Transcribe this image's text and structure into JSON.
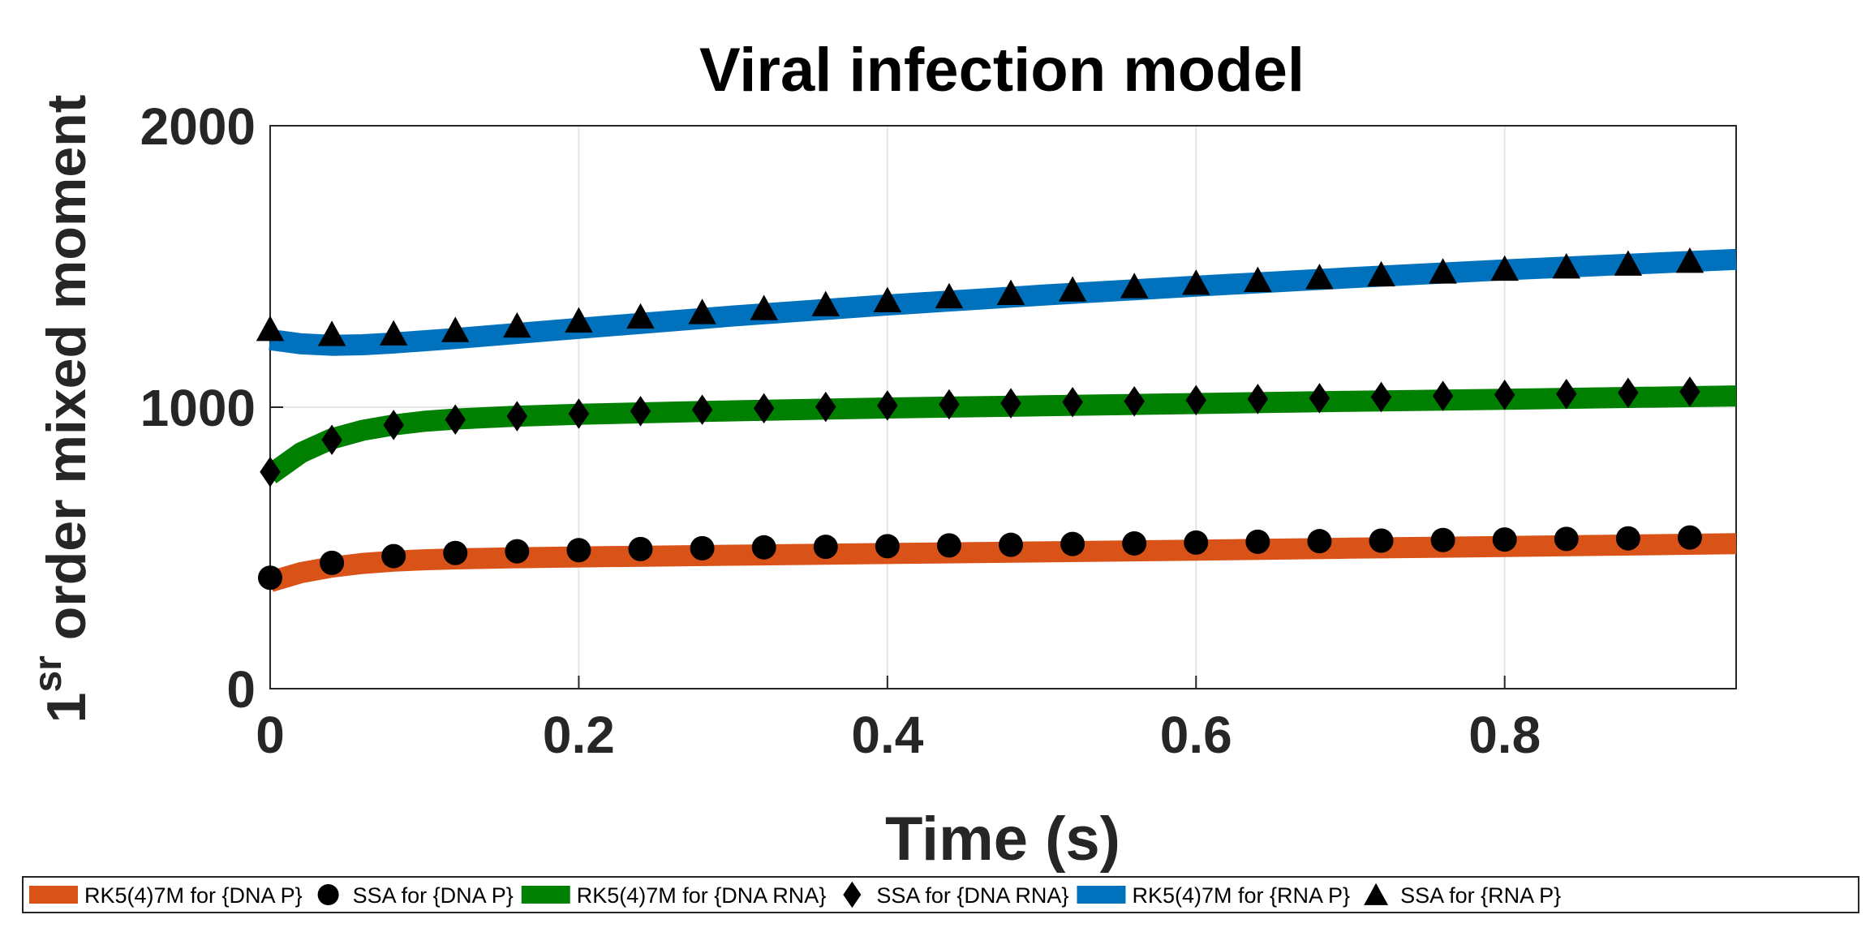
{
  "chart_data": {
    "type": "line",
    "title": "Viral infection model",
    "xlabel": "Time (s)",
    "ylabel_main": "1",
    "ylabel_sup": "sr",
    "ylabel_rest": " order mixed moment",
    "xlim": [
      0,
      0.95
    ],
    "ylim": [
      0,
      2000
    ],
    "xticks": [
      0,
      0.2,
      0.4,
      0.6,
      0.8
    ],
    "xtick_labels": [
      "0",
      "0.2",
      "0.4",
      "0.6",
      "0.8"
    ],
    "yticks": [
      0,
      1000,
      2000
    ],
    "ytick_labels": [
      "0",
      "1000",
      "2000"
    ],
    "grid": true,
    "legend_position": "bottom",
    "series": [
      {
        "name": "RK5(4)7M for {DNA P}",
        "kind": "line",
        "color": "#D95319",
        "x": [
          0,
          0.02,
          0.04,
          0.06,
          0.08,
          0.1,
          0.12,
          0.16,
          0.2,
          0.3,
          0.4,
          0.5,
          0.6,
          0.7,
          0.8,
          0.95
        ],
        "y": [
          380,
          412,
          432,
          445,
          453,
          458,
          461,
          465,
          468,
          474,
          480,
          486,
          492,
          499,
          505,
          515
        ]
      },
      {
        "name": "SSA for {DNA P}",
        "kind": "marker",
        "marker": "circle",
        "color": "#000000",
        "x": [
          0,
          0.04,
          0.08,
          0.12,
          0.16,
          0.2,
          0.24,
          0.28,
          0.32,
          0.36,
          0.4,
          0.44,
          0.48,
          0.52,
          0.56,
          0.6,
          0.64,
          0.68,
          0.72,
          0.76,
          0.8,
          0.84,
          0.88,
          0.92
        ],
        "y": [
          394,
          447,
          471,
          482,
          488,
          492,
          496,
          499,
          502,
          504,
          506,
          509,
          511,
          514,
          516,
          519,
          522,
          524,
          526,
          528,
          530,
          532,
          534,
          537
        ]
      },
      {
        "name": "RK5(4)7M for {DNA RNA}",
        "kind": "line",
        "color": "#008000",
        "x": [
          0,
          0.02,
          0.04,
          0.06,
          0.08,
          0.1,
          0.12,
          0.16,
          0.2,
          0.3,
          0.4,
          0.5,
          0.6,
          0.7,
          0.8,
          0.95
        ],
        "y": [
          760,
          838,
          888,
          918,
          937,
          950,
          958,
          968,
          975,
          987,
          997,
          1005,
          1013,
          1021,
          1028,
          1040
        ]
      },
      {
        "name": "SSA for {DNA RNA}",
        "kind": "marker",
        "marker": "diamond",
        "color": "#000000",
        "x": [
          0,
          0.04,
          0.08,
          0.12,
          0.16,
          0.2,
          0.24,
          0.28,
          0.32,
          0.36,
          0.4,
          0.44,
          0.48,
          0.52,
          0.56,
          0.6,
          0.64,
          0.68,
          0.72,
          0.76,
          0.8,
          0.84,
          0.88,
          0.92
        ],
        "y": [
          770,
          884,
          937,
          956,
          968,
          977,
          986,
          991,
          996,
          1001,
          1006,
          1010,
          1014,
          1018,
          1021,
          1025,
          1029,
          1032,
          1036,
          1040,
          1044,
          1047,
          1051,
          1055
        ]
      },
      {
        "name": "RK5(4)7M for {RNA P}",
        "kind": "line",
        "color": "#0072BD",
        "x": [
          0,
          0.02,
          0.04,
          0.06,
          0.08,
          0.1,
          0.12,
          0.16,
          0.2,
          0.3,
          0.4,
          0.5,
          0.6,
          0.7,
          0.8,
          0.95
        ],
        "y": [
          1240,
          1225,
          1220,
          1222,
          1228,
          1236,
          1244,
          1262,
          1280,
          1324,
          1363,
          1398,
          1430,
          1460,
          1488,
          1525
        ]
      },
      {
        "name": "SSA for {RNA P}",
        "kind": "marker",
        "marker": "triangle",
        "color": "#000000",
        "x": [
          0,
          0.04,
          0.08,
          0.12,
          0.16,
          0.2,
          0.24,
          0.28,
          0.32,
          0.36,
          0.4,
          0.44,
          0.48,
          0.52,
          0.56,
          0.6,
          0.64,
          0.68,
          0.72,
          0.76,
          0.8,
          0.84,
          0.88,
          0.92
        ],
        "y": [
          1278,
          1260,
          1262,
          1274,
          1290,
          1308,
          1322,
          1338,
          1352,
          1366,
          1380,
          1394,
          1406,
          1418,
          1430,
          1442,
          1452,
          1462,
          1472,
          1482,
          1492,
          1500,
          1510,
          1520
        ]
      }
    ]
  }
}
